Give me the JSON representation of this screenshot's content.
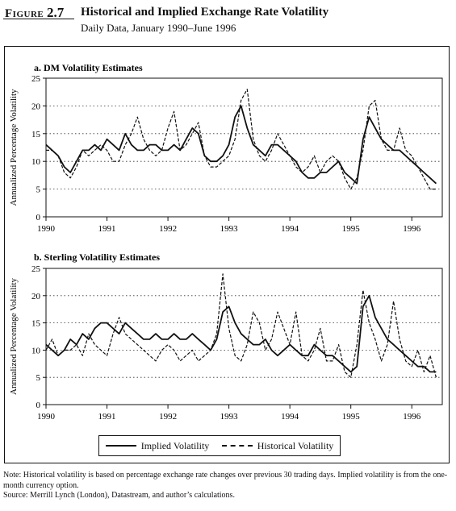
{
  "figure": {
    "label_word": "Figure",
    "label_number": "2.7",
    "title": "Historical and Implied Exchange Rate Volatility",
    "subtitle": "Daily Data, January 1990–June 1996"
  },
  "legend": {
    "implied": "Implied Volatility",
    "historical": "Historical Volatility"
  },
  "notes": {
    "note": "Note: Historical volatility is based on percentage exchange rate changes over previous 30 trading days. Implied volatility is from the one-month currency option.",
    "source": "Source: Merrill Lynch (London), Datastream, and author’s calculations."
  },
  "chart_data": [
    {
      "type": "line",
      "title": "a. DM Volatility Estimates",
      "ylabel": "Annualized Percentage Volatility",
      "xlabel": "",
      "ylim": [
        0,
        25
      ],
      "yticks": [
        0,
        5,
        10,
        15,
        20,
        25
      ],
      "xlim": [
        1990.0,
        1996.5
      ],
      "xticks": [
        "1990",
        "1991",
        "1992",
        "1993",
        "1994",
        "1995",
        "1996"
      ],
      "grid": "horizontal dotted",
      "x": [
        1990.0,
        1990.1,
        1990.2,
        1990.3,
        1990.4,
        1990.5,
        1990.6,
        1990.7,
        1990.8,
        1990.9,
        1991.0,
        1991.1,
        1991.2,
        1991.3,
        1991.4,
        1991.5,
        1991.6,
        1991.7,
        1991.8,
        1991.9,
        1992.0,
        1992.1,
        1992.2,
        1992.3,
        1992.4,
        1992.5,
        1992.6,
        1992.7,
        1992.8,
        1992.9,
        1993.0,
        1993.1,
        1993.2,
        1993.3,
        1993.4,
        1993.5,
        1993.6,
        1993.7,
        1993.8,
        1993.9,
        1994.0,
        1994.1,
        1994.2,
        1994.3,
        1994.4,
        1994.5,
        1994.6,
        1994.7,
        1994.8,
        1994.9,
        1995.0,
        1995.1,
        1995.2,
        1995.3,
        1995.4,
        1995.5,
        1995.6,
        1995.7,
        1995.8,
        1995.9,
        1996.0,
        1996.1,
        1996.2,
        1996.3,
        1996.4
      ],
      "series": [
        {
          "name": "Implied Volatility",
          "values": [
            13,
            12,
            11,
            9,
            8,
            10,
            12,
            12,
            13,
            12,
            14,
            13,
            12,
            15,
            13,
            12,
            12,
            13,
            13,
            12,
            12,
            13,
            12,
            14,
            16,
            15,
            11,
            10,
            10,
            11,
            13,
            18,
            20,
            16,
            13,
            12,
            11,
            13,
            13,
            12,
            11,
            10,
            8,
            7,
            7,
            8,
            8,
            9,
            10,
            8,
            7,
            6,
            14,
            18,
            16,
            14,
            13,
            12,
            12,
            11,
            10,
            9,
            8,
            7,
            6
          ]
        },
        {
          "name": "Historical Volatility",
          "values": [
            12,
            12,
            11,
            8,
            7,
            9,
            12,
            11,
            12,
            13,
            12,
            10,
            10,
            13,
            15,
            18,
            14,
            12,
            11,
            12,
            16,
            19,
            12,
            13,
            15,
            17,
            11,
            9,
            9,
            10,
            11,
            14,
            21,
            23,
            14,
            11,
            10,
            12,
            15,
            13,
            11,
            9,
            8,
            9,
            11,
            8,
            10,
            11,
            10,
            7,
            5,
            7,
            12,
            20,
            21,
            14,
            12,
            12,
            16,
            12,
            11,
            9,
            7,
            5,
            5
          ]
        }
      ]
    },
    {
      "type": "line",
      "title": "b. Sterling Volatility Estimates",
      "ylabel": "Annualized Percentage Volatility",
      "xlabel": "",
      "ylim": [
        0,
        25
      ],
      "yticks": [
        0,
        5,
        10,
        15,
        20,
        25
      ],
      "xlim": [
        1990.0,
        1996.5
      ],
      "xticks": [
        "1990",
        "1991",
        "1992",
        "1993",
        "1994",
        "1995",
        "1996"
      ],
      "grid": "horizontal dotted",
      "x": [
        1990.0,
        1990.1,
        1990.2,
        1990.3,
        1990.4,
        1990.5,
        1990.6,
        1990.7,
        1990.8,
        1990.9,
        1991.0,
        1991.1,
        1991.2,
        1991.3,
        1991.4,
        1991.5,
        1991.6,
        1991.7,
        1991.8,
        1991.9,
        1992.0,
        1992.1,
        1992.2,
        1992.3,
        1992.4,
        1992.5,
        1992.6,
        1992.7,
        1992.8,
        1992.9,
        1993.0,
        1993.1,
        1993.2,
        1993.3,
        1993.4,
        1993.5,
        1993.6,
        1993.7,
        1993.8,
        1993.9,
        1994.0,
        1994.1,
        1994.2,
        1994.3,
        1994.4,
        1994.5,
        1994.6,
        1994.7,
        1994.8,
        1994.9,
        1995.0,
        1995.1,
        1995.2,
        1995.3,
        1995.4,
        1995.5,
        1995.6,
        1995.7,
        1995.8,
        1995.9,
        1996.0,
        1996.1,
        1996.2,
        1996.3,
        1996.4
      ],
      "series": [
        {
          "name": "Implied Volatility",
          "values": [
            11,
            10,
            9,
            10,
            12,
            11,
            13,
            12,
            14,
            15,
            15,
            14,
            13,
            15,
            14,
            13,
            12,
            12,
            13,
            12,
            12,
            13,
            12,
            12,
            13,
            12,
            11,
            10,
            12,
            17,
            18,
            15,
            13,
            12,
            11,
            11,
            12,
            10,
            9,
            10,
            11,
            10,
            9,
            9,
            11,
            10,
            9,
            9,
            8,
            7,
            6,
            7,
            18,
            20,
            16,
            14,
            12,
            11,
            10,
            9,
            8,
            7,
            7,
            6,
            6
          ]
        },
        {
          "name": "Historical Volatility",
          "values": [
            10,
            12,
            9,
            10,
            10,
            11,
            9,
            13,
            11,
            10,
            9,
            13,
            16,
            13,
            12,
            11,
            10,
            9,
            8,
            10,
            11,
            10,
            8,
            9,
            10,
            8,
            9,
            10,
            13,
            24,
            14,
            9,
            8,
            11,
            17,
            15,
            10,
            12,
            17,
            14,
            11,
            17,
            9,
            8,
            10,
            14,
            8,
            8,
            11,
            6,
            5,
            11,
            21,
            15,
            12,
            8,
            11,
            19,
            12,
            8,
            7,
            10,
            6,
            9,
            5
          ]
        }
      ]
    }
  ]
}
